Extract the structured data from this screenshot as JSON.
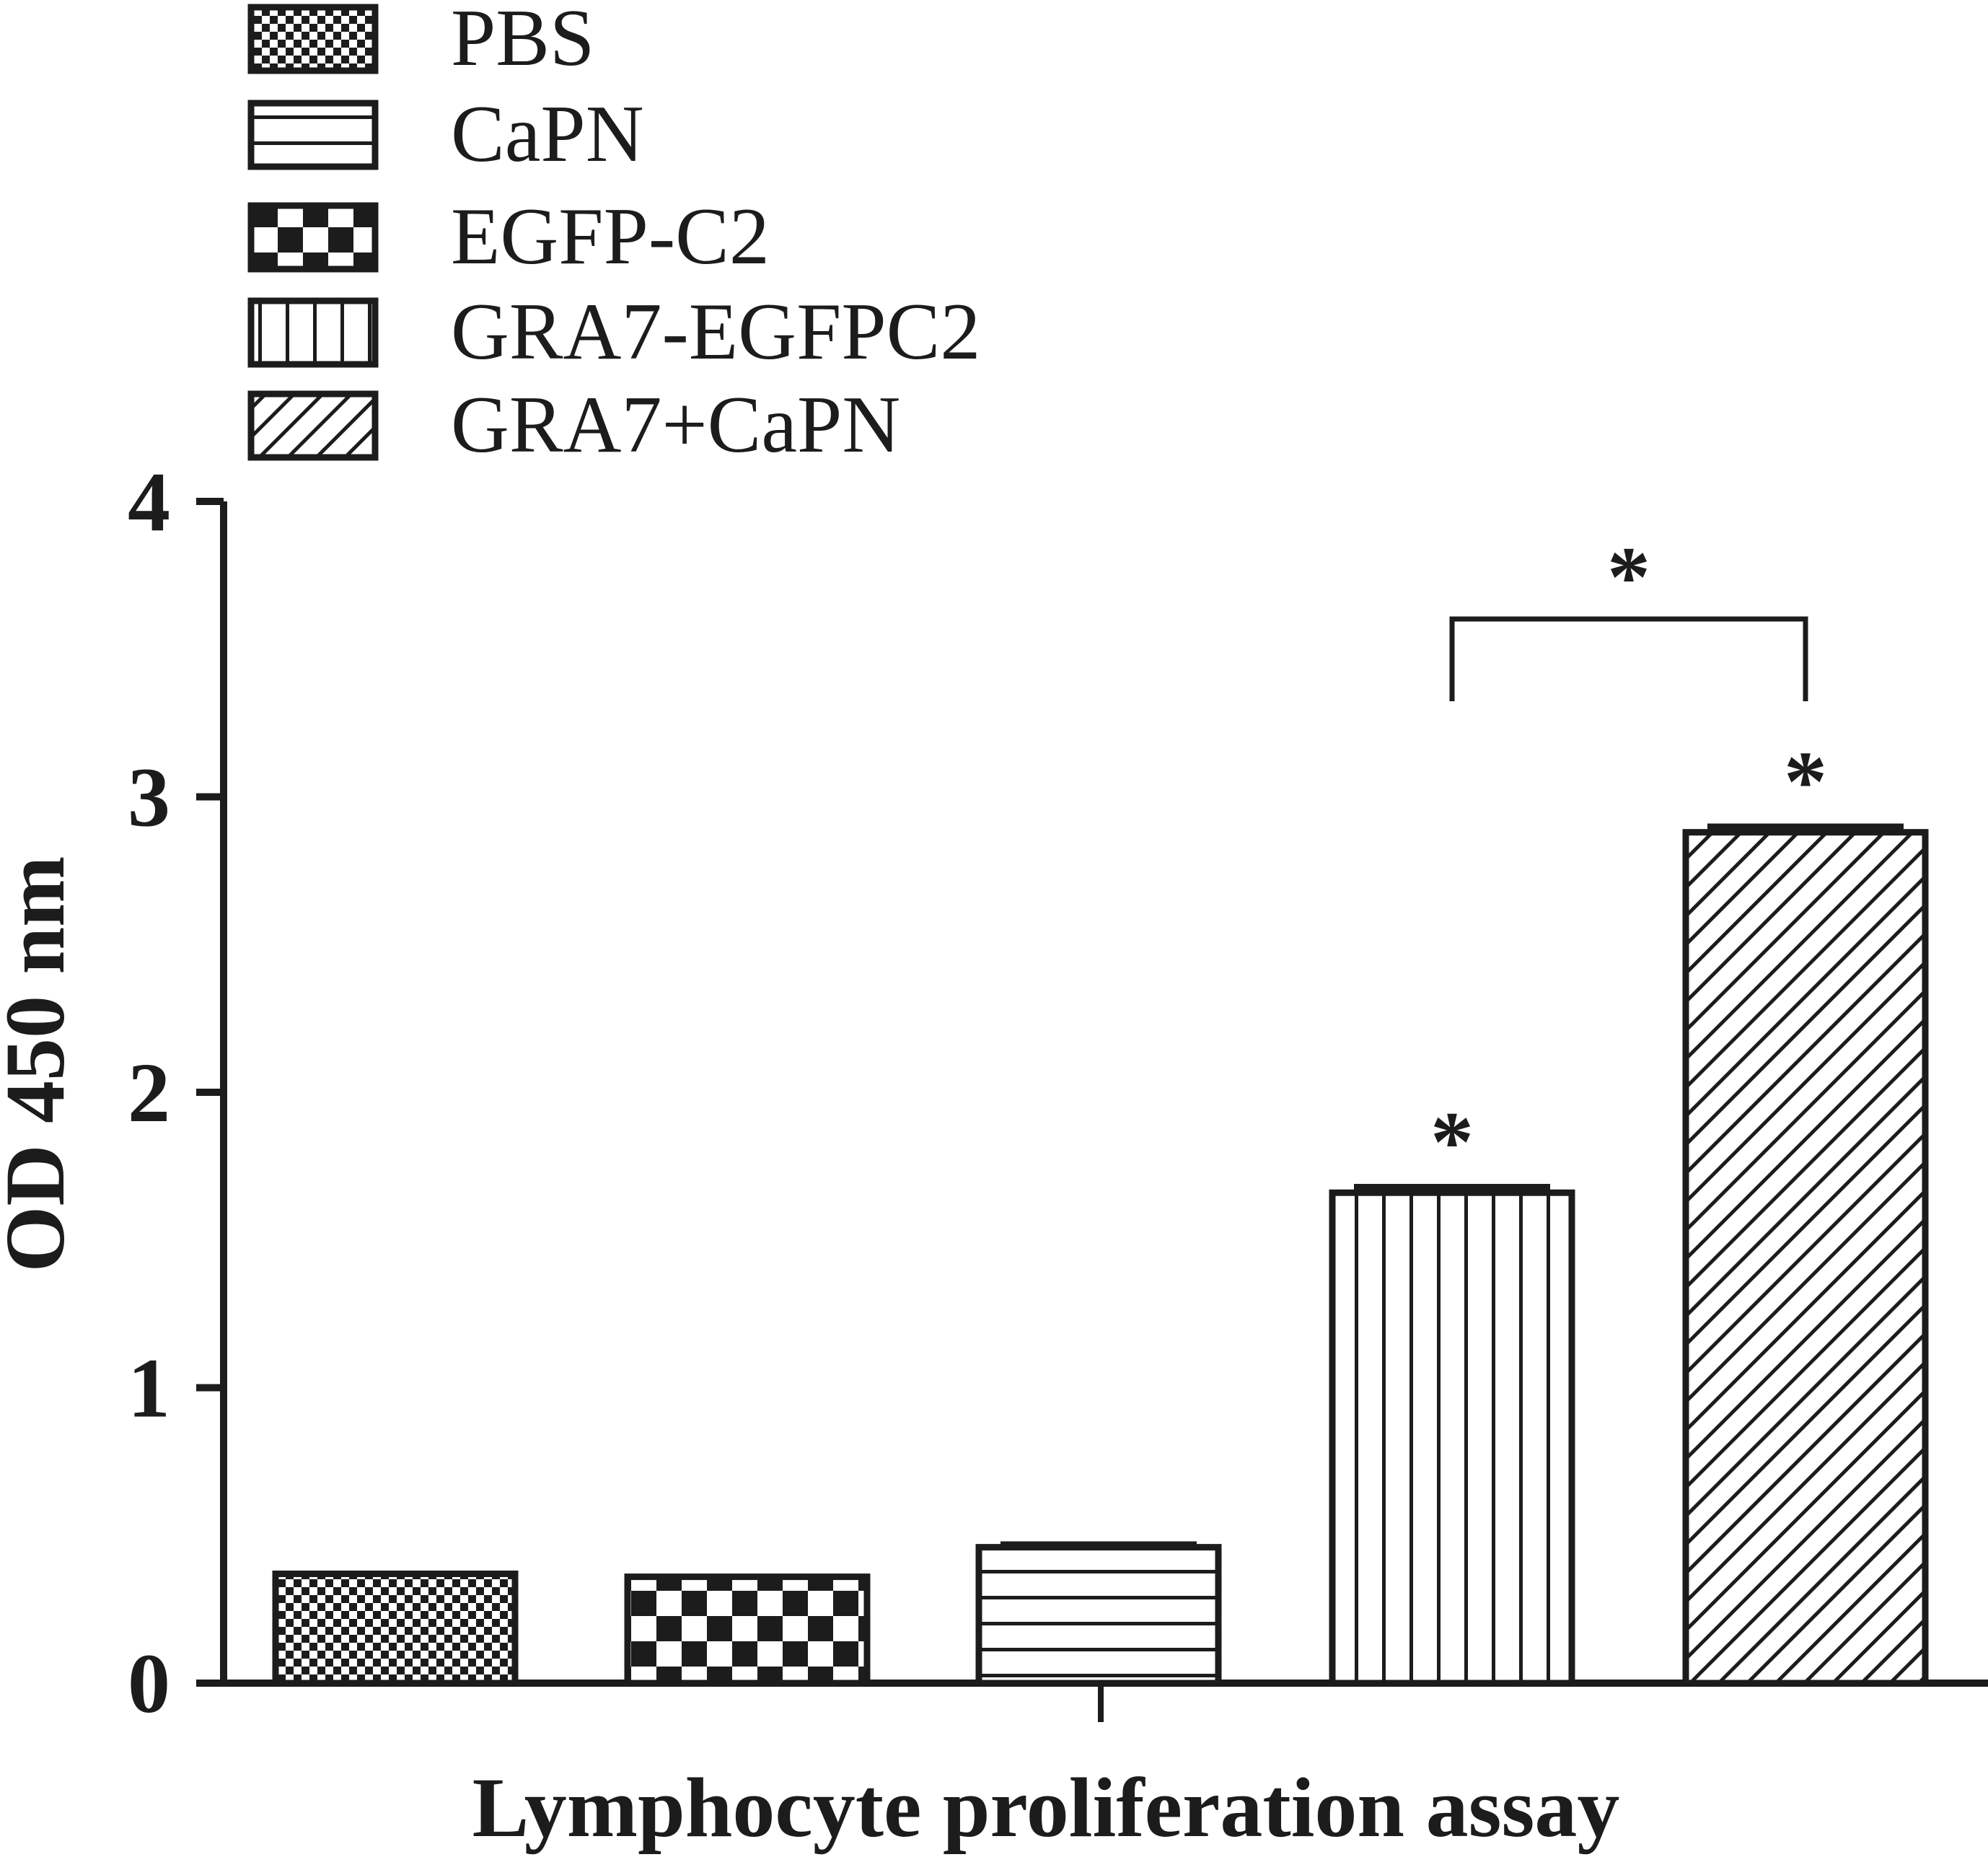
{
  "chart_data": {
    "type": "bar",
    "xlabel": "Lymphocyte proliferation assay",
    "ylabel": "OD 450 nm",
    "ylim": [
      0,
      4
    ],
    "yticks": [
      0,
      1,
      2,
      3,
      4
    ],
    "grid": false,
    "legend_position": "top-left",
    "legend": [
      {
        "name": "PBS",
        "pattern": "checker-fine"
      },
      {
        "name": "CaPN",
        "pattern": "horizontal-lines"
      },
      {
        "name": "EGFP-C2",
        "pattern": "checker-coarse"
      },
      {
        "name": "GRA7-EGFPC2",
        "pattern": "vertical-lines"
      },
      {
        "name": "GRA7+CaPN",
        "pattern": "diagonal-lines"
      }
    ],
    "bars": [
      {
        "pattern": "checker-fine",
        "value": 0.37,
        "error": 0.0
      },
      {
        "pattern": "checker-coarse",
        "value": 0.36,
        "error": 0.0
      },
      {
        "pattern": "horizontal-lines",
        "value": 0.46,
        "error": 0.01
      },
      {
        "pattern": "vertical-lines",
        "value": 1.66,
        "error": 0.02,
        "annotation": "*"
      },
      {
        "pattern": "diagonal-lines",
        "value": 2.88,
        "error": 0.02,
        "annotation": "*"
      }
    ],
    "comparisons": [
      {
        "from_bar": 3,
        "to_bar": 4,
        "label": "*"
      }
    ],
    "colors": {
      "ink": "#1c1c1c",
      "background": "#ffffff"
    }
  }
}
